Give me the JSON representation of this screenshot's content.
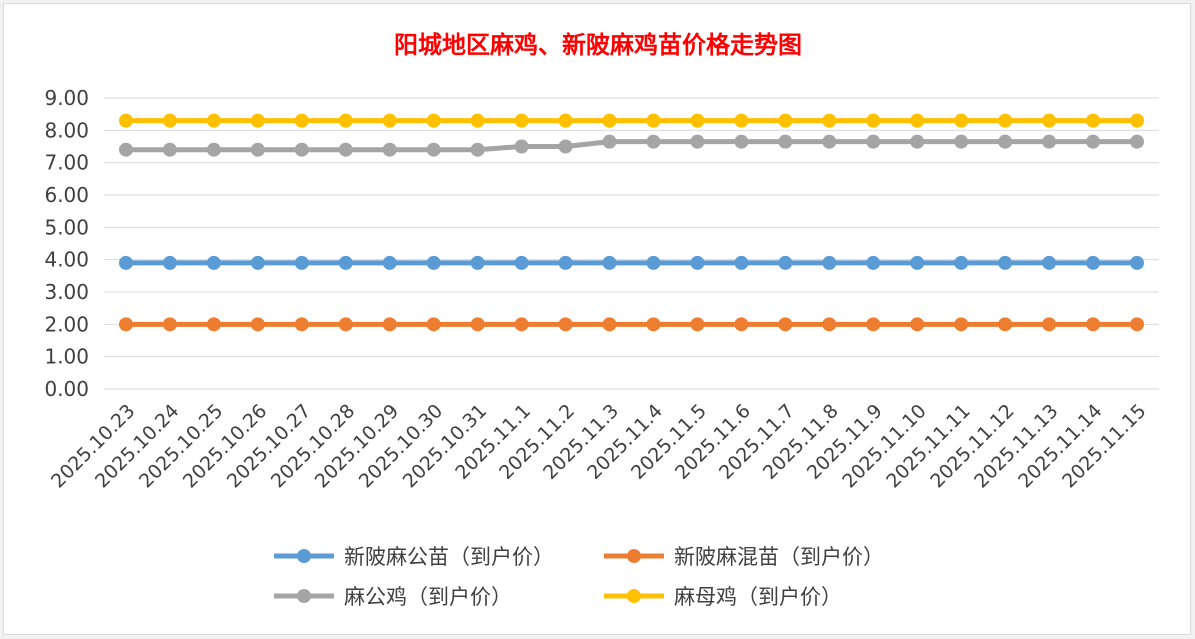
{
  "chart_data": {
    "type": "line",
    "title": "阳城地区麻鸡、新陂麻鸡苗价格走势图",
    "xlabel": "",
    "ylabel": "",
    "ylim": [
      0,
      9
    ],
    "yticks": [
      "0.00",
      "1.00",
      "2.00",
      "3.00",
      "4.00",
      "5.00",
      "6.00",
      "7.00",
      "8.00",
      "9.00"
    ],
    "grid": true,
    "legend_position": "bottom",
    "categories": [
      "2025.10.23",
      "2025.10.24",
      "2025.10.25",
      "2025.10.26",
      "2025.10.27",
      "2025.10.28",
      "2025.10.29",
      "2025.10.30",
      "2025.10.31",
      "2025.11.1",
      "2025.11.2",
      "2025.11.3",
      "2025.11.4",
      "2025.11.5",
      "2025.11.6",
      "2025.11.7",
      "2025.11.8",
      "2025.11.9",
      "2025.11.10",
      "2025.11.11",
      "2025.11.12",
      "2025.11.13",
      "2025.11.14",
      "2025.11.15"
    ],
    "series": [
      {
        "name": "新陂麻公苗（到户价）",
        "color": "#5b9bd5",
        "values": [
          3.9,
          3.9,
          3.9,
          3.9,
          3.9,
          3.9,
          3.9,
          3.9,
          3.9,
          3.9,
          3.9,
          3.9,
          3.9,
          3.9,
          3.9,
          3.9,
          3.9,
          3.9,
          3.9,
          3.9,
          3.9,
          3.9,
          3.9,
          3.9
        ]
      },
      {
        "name": "新陂麻混苗（到户价）",
        "color": "#ed7d31",
        "values": [
          2.0,
          2.0,
          2.0,
          2.0,
          2.0,
          2.0,
          2.0,
          2.0,
          2.0,
          2.0,
          2.0,
          2.0,
          2.0,
          2.0,
          2.0,
          2.0,
          2.0,
          2.0,
          2.0,
          2.0,
          2.0,
          2.0,
          2.0,
          2.0
        ]
      },
      {
        "name": "麻公鸡（到户价）",
        "color": "#a5a5a5",
        "values": [
          7.4,
          7.4,
          7.4,
          7.4,
          7.4,
          7.4,
          7.4,
          7.4,
          7.4,
          7.5,
          7.5,
          7.65,
          7.65,
          7.65,
          7.65,
          7.65,
          7.65,
          7.65,
          7.65,
          7.65,
          7.65,
          7.65,
          7.65,
          7.65
        ]
      },
      {
        "name": "麻母鸡（到户价）",
        "color": "#ffc000",
        "values": [
          8.3,
          8.3,
          8.3,
          8.3,
          8.3,
          8.3,
          8.3,
          8.3,
          8.3,
          8.3,
          8.3,
          8.3,
          8.3,
          8.3,
          8.3,
          8.3,
          8.3,
          8.3,
          8.3,
          8.3,
          8.3,
          8.3,
          8.3,
          8.3
        ]
      }
    ]
  }
}
